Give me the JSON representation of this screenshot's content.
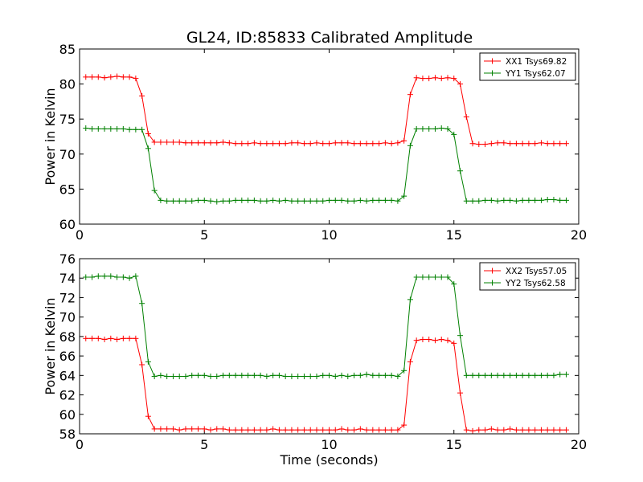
{
  "chart_data": [
    {
      "type": "line",
      "title": "GL24, ID:85833 Calibrated Amplitude",
      "xlabel": "",
      "ylabel": "Power in Kelvin",
      "xlim": [
        0,
        20
      ],
      "ylim": [
        60,
        85
      ],
      "xticks": [
        0,
        5,
        10,
        15,
        20
      ],
      "yticks": [
        60,
        65,
        70,
        75,
        80,
        85
      ],
      "legend_position": "top-right",
      "x": [
        0.25,
        0.5,
        0.75,
        1.0,
        1.25,
        1.5,
        1.75,
        2.0,
        2.25,
        2.5,
        2.75,
        3.0,
        3.25,
        3.5,
        3.75,
        4.0,
        4.25,
        4.5,
        4.75,
        5.0,
        5.25,
        5.5,
        5.75,
        6.0,
        6.25,
        6.5,
        6.75,
        7.0,
        7.25,
        7.5,
        7.75,
        8.0,
        8.25,
        8.5,
        8.75,
        9.0,
        9.25,
        9.5,
        9.75,
        10.0,
        10.25,
        10.5,
        10.75,
        11.0,
        11.25,
        11.5,
        11.75,
        12.0,
        12.25,
        12.5,
        12.75,
        13.0,
        13.25,
        13.5,
        13.75,
        14.0,
        14.25,
        14.5,
        14.75,
        15.0,
        15.25,
        15.5,
        15.75,
        16.0,
        16.25,
        16.5,
        16.75,
        17.0,
        17.25,
        17.5,
        17.75,
        18.0,
        18.25,
        18.5,
        18.75,
        19.0,
        19.25,
        19.5
      ],
      "series": [
        {
          "name": "XX1 Tsys69.82",
          "color": "#ff0000",
          "values": [
            81.0,
            81.0,
            81.0,
            80.9,
            81.0,
            81.1,
            81.0,
            81.0,
            80.8,
            78.3,
            72.9,
            71.7,
            71.7,
            71.7,
            71.7,
            71.7,
            71.6,
            71.6,
            71.6,
            71.6,
            71.6,
            71.6,
            71.7,
            71.6,
            71.5,
            71.5,
            71.5,
            71.6,
            71.5,
            71.5,
            71.5,
            71.5,
            71.5,
            71.6,
            71.6,
            71.5,
            71.5,
            71.6,
            71.5,
            71.5,
            71.6,
            71.6,
            71.6,
            71.5,
            71.5,
            71.5,
            71.5,
            71.5,
            71.6,
            71.5,
            71.6,
            71.9,
            78.5,
            80.9,
            80.8,
            80.8,
            80.9,
            80.8,
            80.9,
            80.8,
            80.0,
            75.3,
            71.5,
            71.4,
            71.4,
            71.5,
            71.6,
            71.6,
            71.5,
            71.5,
            71.5,
            71.5,
            71.5,
            71.6,
            71.5,
            71.5,
            71.5,
            71.5
          ]
        },
        {
          "name": "YY1 Tsys62.07",
          "color": "#008000",
          "values": [
            73.7,
            73.6,
            73.6,
            73.6,
            73.6,
            73.6,
            73.6,
            73.5,
            73.5,
            73.5,
            70.8,
            64.8,
            63.4,
            63.3,
            63.3,
            63.3,
            63.3,
            63.3,
            63.4,
            63.4,
            63.3,
            63.2,
            63.3,
            63.3,
            63.4,
            63.4,
            63.4,
            63.4,
            63.3,
            63.3,
            63.4,
            63.3,
            63.4,
            63.3,
            63.3,
            63.3,
            63.3,
            63.3,
            63.3,
            63.4,
            63.4,
            63.4,
            63.3,
            63.3,
            63.4,
            63.3,
            63.4,
            63.4,
            63.4,
            63.4,
            63.3,
            64.0,
            71.2,
            73.6,
            73.6,
            73.6,
            73.6,
            73.7,
            73.6,
            72.8,
            67.6,
            63.3,
            63.3,
            63.3,
            63.4,
            63.4,
            63.3,
            63.4,
            63.4,
            63.3,
            63.4,
            63.4,
            63.4,
            63.4,
            63.5,
            63.5,
            63.4,
            63.4
          ]
        }
      ]
    },
    {
      "type": "line",
      "title": "",
      "xlabel": "Time (seconds)",
      "ylabel": "Power in Kelvin",
      "xlim": [
        0,
        20
      ],
      "ylim": [
        58,
        76
      ],
      "xticks": [
        0,
        5,
        10,
        15,
        20
      ],
      "yticks": [
        58,
        60,
        62,
        64,
        66,
        68,
        70,
        72,
        74,
        76
      ],
      "legend_position": "top-right",
      "x": [
        0.25,
        0.5,
        0.75,
        1.0,
        1.25,
        1.5,
        1.75,
        2.0,
        2.25,
        2.5,
        2.75,
        3.0,
        3.25,
        3.5,
        3.75,
        4.0,
        4.25,
        4.5,
        4.75,
        5.0,
        5.25,
        5.5,
        5.75,
        6.0,
        6.25,
        6.5,
        6.75,
        7.0,
        7.25,
        7.5,
        7.75,
        8.0,
        8.25,
        8.5,
        8.75,
        9.0,
        9.25,
        9.5,
        9.75,
        10.0,
        10.25,
        10.5,
        10.75,
        11.0,
        11.25,
        11.5,
        11.75,
        12.0,
        12.25,
        12.5,
        12.75,
        13.0,
        13.25,
        13.5,
        13.75,
        14.0,
        14.25,
        14.5,
        14.75,
        15.0,
        15.25,
        15.5,
        15.75,
        16.0,
        16.25,
        16.5,
        16.75,
        17.0,
        17.25,
        17.5,
        17.75,
        18.0,
        18.25,
        18.5,
        18.75,
        19.0,
        19.25,
        19.5
      ],
      "series": [
        {
          "name": "XX2 Tsys57.05",
          "color": "#ff0000",
          "values": [
            67.8,
            67.8,
            67.8,
            67.7,
            67.8,
            67.7,
            67.8,
            67.8,
            67.8,
            65.1,
            59.8,
            58.5,
            58.5,
            58.5,
            58.5,
            58.4,
            58.5,
            58.5,
            58.5,
            58.5,
            58.4,
            58.5,
            58.5,
            58.4,
            58.4,
            58.4,
            58.4,
            58.4,
            58.4,
            58.4,
            58.5,
            58.4,
            58.4,
            58.4,
            58.4,
            58.4,
            58.4,
            58.4,
            58.4,
            58.4,
            58.4,
            58.5,
            58.4,
            58.4,
            58.5,
            58.4,
            58.4,
            58.4,
            58.4,
            58.4,
            58.4,
            58.9,
            65.4,
            67.6,
            67.7,
            67.7,
            67.6,
            67.7,
            67.6,
            67.3,
            62.2,
            58.4,
            58.3,
            58.4,
            58.4,
            58.5,
            58.4,
            58.4,
            58.5,
            58.4,
            58.4,
            58.4,
            58.4,
            58.4,
            58.4,
            58.4,
            58.4,
            58.4
          ]
        },
        {
          "name": "YY2 Tsys62.58",
          "color": "#008000",
          "values": [
            74.1,
            74.1,
            74.2,
            74.2,
            74.2,
            74.1,
            74.1,
            74.0,
            74.2,
            71.4,
            65.4,
            63.9,
            64.0,
            63.9,
            63.9,
            63.9,
            63.9,
            64.0,
            64.0,
            64.0,
            63.9,
            63.9,
            64.0,
            64.0,
            64.0,
            64.0,
            64.0,
            64.0,
            64.0,
            63.9,
            64.0,
            64.0,
            63.9,
            63.9,
            63.9,
            63.9,
            63.9,
            63.9,
            64.0,
            64.0,
            63.9,
            64.0,
            63.9,
            64.0,
            64.0,
            64.1,
            64.0,
            64.0,
            64.0,
            64.0,
            63.9,
            64.5,
            71.8,
            74.1,
            74.1,
            74.1,
            74.1,
            74.1,
            74.1,
            73.4,
            68.1,
            64.0,
            64.0,
            64.0,
            64.0,
            64.0,
            64.0,
            64.0,
            64.0,
            64.0,
            64.0,
            64.0,
            64.0,
            64.0,
            64.0,
            64.0,
            64.1,
            64.1
          ]
        }
      ]
    }
  ]
}
